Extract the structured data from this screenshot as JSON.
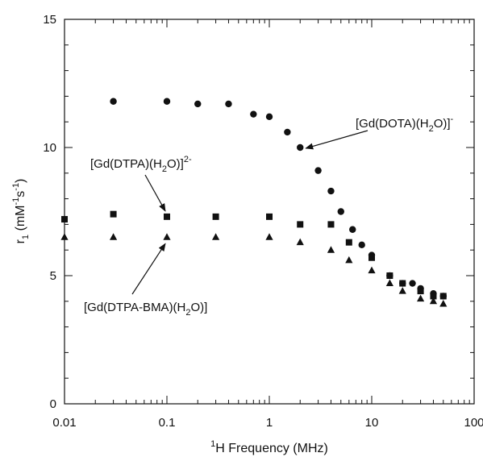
{
  "chart_data": {
    "type": "scatter",
    "title": "",
    "xlabel": "H Frequency (MHz)",
    "xlabel_superscript": "1",
    "ylabel": "r",
    "ylabel_subscript": "1",
    "ylabel_units": "(mM",
    "ylabel_units_sup1": "-1",
    "ylabel_units_mid": "s",
    "ylabel_units_sup2": "-1",
    "ylabel_units_end": ")",
    "x_scale": "log",
    "xlim": [
      0.01,
      100
    ],
    "ylim": [
      0,
      15
    ],
    "x_ticks": [
      0.01,
      0.1,
      1,
      10,
      100
    ],
    "x_tick_labels": [
      "0.01",
      "0.1",
      "1",
      "10",
      "100"
    ],
    "y_ticks": [
      0,
      5,
      10,
      15
    ],
    "y_tick_labels": [
      "0",
      "5",
      "10",
      "15"
    ],
    "grid": false,
    "series": [
      {
        "marker": "circle",
        "x": [
          0.03,
          0.1,
          0.2,
          0.4,
          0.7,
          1.0,
          1.5,
          2.0,
          3.0,
          4.0,
          5.0,
          6.5,
          8.0,
          10,
          15,
          20,
          25,
          30,
          40,
          50
        ],
        "y": [
          11.8,
          11.8,
          11.7,
          11.7,
          11.3,
          11.2,
          10.6,
          10.0,
          9.1,
          8.3,
          7.5,
          6.8,
          6.2,
          5.8,
          5.0,
          4.7,
          4.7,
          4.5,
          4.3,
          4.2
        ]
      },
      {
        "marker": "square",
        "x": [
          0.01,
          0.03,
          0.1,
          0.3,
          1.0,
          2.0,
          4.0,
          6.0,
          10,
          15,
          20,
          30,
          40,
          50
        ],
        "y": [
          7.2,
          7.4,
          7.3,
          7.3,
          7.3,
          7.0,
          7.0,
          6.3,
          5.7,
          5.0,
          4.7,
          4.4,
          4.2,
          4.2
        ]
      },
      {
        "marker": "triangle",
        "x": [
          0.01,
          0.03,
          0.1,
          0.3,
          1.0,
          2.0,
          4.0,
          6.0,
          10,
          15,
          20,
          30,
          40,
          50
        ],
        "y": [
          6.5,
          6.5,
          6.5,
          6.5,
          6.5,
          6.3,
          6.0,
          5.6,
          5.2,
          4.7,
          4.4,
          4.1,
          4.0,
          3.9
        ]
      }
    ],
    "annotations": [
      {
        "id": "dota",
        "main": "[Gd(DOTA)(H",
        "sub": "2",
        "tail": "O)]",
        "sup": "-",
        "target_x": 2.0,
        "target_y": 10.0
      },
      {
        "id": "dtpa",
        "main": "[Gd(DTPA)(H",
        "sub": "2",
        "tail": "O)]",
        "sup": "2-",
        "target_x": 0.1,
        "target_y": 7.3
      },
      {
        "id": "dtpa-bma",
        "main": "[Gd(DTPA-BMA)(H",
        "sub": "2",
        "tail": "O)]",
        "sup": "",
        "target_x": 0.1,
        "target_y": 6.5
      }
    ]
  }
}
